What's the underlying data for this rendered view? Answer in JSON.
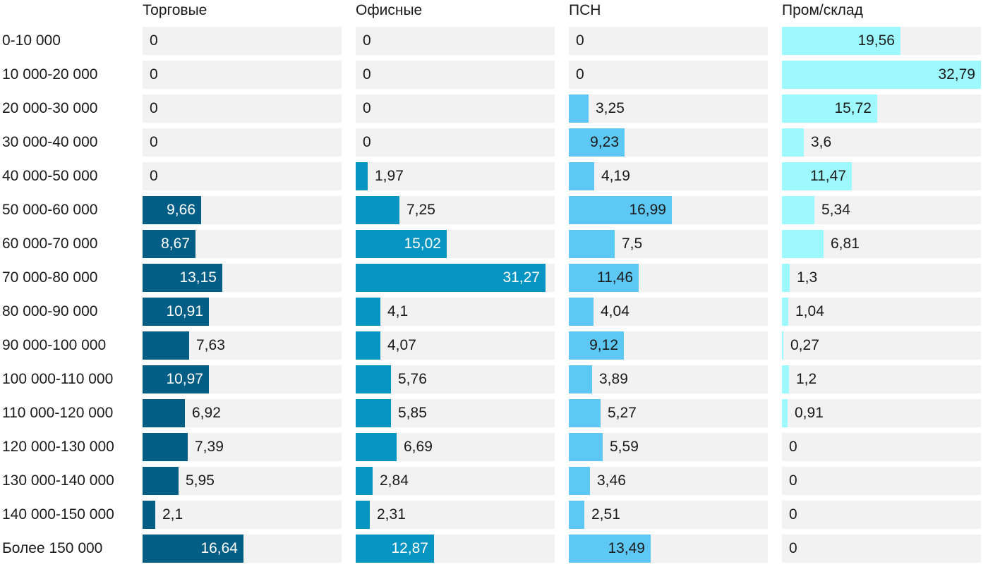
{
  "chart_data": {
    "type": "bar",
    "orientation": "horizontal",
    "layout": "small-multiples",
    "categories": [
      "0-10 000",
      "10 000-20 000",
      "20 000-30 000",
      "30 000-40 000",
      "40 000-50 000",
      "50 000-60 000",
      "60 000-70 000",
      "70 000-80 000",
      "80 000-90 000",
      "90 000-100 000",
      "100 000-110 000",
      "110 000-120 000",
      "120 000-130 000",
      "130 000-140 000",
      "140 000-150 000",
      "Более 150 000"
    ],
    "series": [
      {
        "name": "Торговые",
        "color": "#025e84",
        "label_color": "light",
        "values": [
          0,
          0,
          0,
          0,
          0,
          9.66,
          8.67,
          13.15,
          10.91,
          7.63,
          10.97,
          6.92,
          7.39,
          5.95,
          2.1,
          16.64
        ],
        "labels": [
          "0",
          "0",
          "0",
          "0",
          "0",
          "9,66",
          "8,67",
          "13,15",
          "10,91",
          "7,63",
          "10,97",
          "6,92",
          "7,39",
          "5,95",
          "2,1",
          "16,64"
        ]
      },
      {
        "name": "Офисные",
        "color": "#0694c2",
        "label_color": "light",
        "values": [
          0,
          0,
          0,
          0,
          1.97,
          7.25,
          15.02,
          31.27,
          4.1,
          4.07,
          5.76,
          5.85,
          6.69,
          2.84,
          2.31,
          12.87
        ],
        "labels": [
          "0",
          "0",
          "0",
          "0",
          "1,97",
          "7,25",
          "15,02",
          "31,27",
          "4,1",
          "4,07",
          "5,76",
          "5,85",
          "6,69",
          "2,84",
          "2,31",
          "12,87"
        ]
      },
      {
        "name": "ПСН",
        "color": "#5ec8f5",
        "label_color": "dark",
        "values": [
          0,
          0,
          3.25,
          9.23,
          4.19,
          16.99,
          7.5,
          11.46,
          4.04,
          9.12,
          3.89,
          5.27,
          5.59,
          3.46,
          2.51,
          13.49
        ],
        "labels": [
          "0",
          "0",
          "3,25",
          "9,23",
          "4,19",
          "16,99",
          "7,5",
          "11,46",
          "4,04",
          "9,12",
          "3,89",
          "5,27",
          "5,59",
          "3,46",
          "2,51",
          "13,49"
        ]
      },
      {
        "name": "Пром/склад",
        "color": "#9ef9fe",
        "label_color": "dark",
        "values": [
          19.56,
          32.79,
          15.72,
          3.6,
          11.47,
          5.34,
          6.81,
          1.3,
          1.04,
          0.27,
          1.2,
          0.91,
          0,
          0,
          0,
          0
        ],
        "labels": [
          "19,56",
          "32,79",
          "15,72",
          "3,6",
          "11,47",
          "5,34",
          "6,81",
          "1,3",
          "1,04",
          "0,27",
          "1,2",
          "0,91",
          "0",
          "0",
          "0",
          "0"
        ]
      }
    ],
    "background_bar_color": "#f2f2f2",
    "grid": false,
    "legend": "none"
  }
}
